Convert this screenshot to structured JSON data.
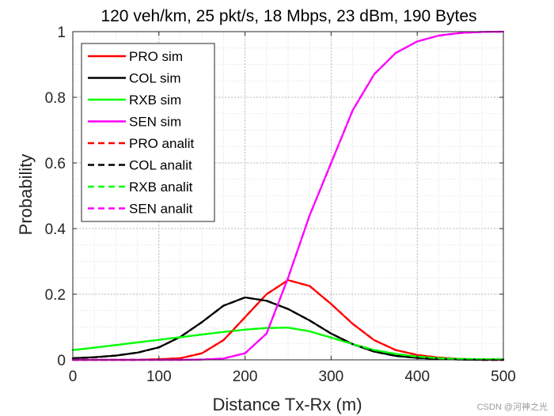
{
  "chart_data": {
    "type": "line",
    "title": "120 veh/km, 25 pkt/s, 18 Mbps, 23 dBm, 190 Bytes",
    "xlabel": "Distance Tx-Rx (m)",
    "ylabel": "Probability",
    "xlim": [
      0,
      500
    ],
    "ylim": [
      0,
      1
    ],
    "xticks": [
      0,
      100,
      200,
      300,
      400,
      500
    ],
    "yticks": [
      0,
      0.2,
      0.4,
      0.6,
      0.8,
      1
    ],
    "x_tick_labels": [
      "0",
      "100",
      "200",
      "300",
      "400",
      "500"
    ],
    "y_tick_labels": [
      "0",
      "0.2",
      "0.4",
      "0.6",
      "0.8",
      "1"
    ],
    "grid": "major and minor, dotted",
    "legend_location": "top-left",
    "x": [
      0,
      25,
      50,
      75,
      100,
      125,
      150,
      175,
      200,
      225,
      250,
      275,
      300,
      325,
      350,
      375,
      400,
      425,
      450,
      475,
      500
    ],
    "series": [
      {
        "name": "PRO sim",
        "color": "#ff0000",
        "style": "solid",
        "values": [
          0.0,
          0.0,
          0.0,
          0.0,
          0.002,
          0.005,
          0.02,
          0.06,
          0.13,
          0.2,
          0.243,
          0.225,
          0.17,
          0.11,
          0.06,
          0.03,
          0.015,
          0.007,
          0.003,
          0.001,
          0.0
        ]
      },
      {
        "name": "COL sim",
        "color": "#000000",
        "style": "solid",
        "values": [
          0.005,
          0.008,
          0.013,
          0.022,
          0.038,
          0.07,
          0.115,
          0.165,
          0.19,
          0.18,
          0.155,
          0.12,
          0.08,
          0.048,
          0.025,
          0.012,
          0.006,
          0.003,
          0.001,
          0.0,
          0.0
        ]
      },
      {
        "name": "RXB sim",
        "color": "#00ff00",
        "style": "solid",
        "values": [
          0.03,
          0.037,
          0.045,
          0.053,
          0.061,
          0.069,
          0.077,
          0.085,
          0.092,
          0.097,
          0.098,
          0.087,
          0.068,
          0.048,
          0.03,
          0.018,
          0.01,
          0.005,
          0.003,
          0.002,
          0.002
        ]
      },
      {
        "name": "SEN sim",
        "color": "#ff00ff",
        "style": "solid",
        "values": [
          0.0,
          0.0,
          0.0,
          0.0,
          0.0,
          0.0,
          0.001,
          0.004,
          0.02,
          0.08,
          0.25,
          0.44,
          0.6,
          0.76,
          0.87,
          0.935,
          0.97,
          0.988,
          0.996,
          0.999,
          1.0
        ]
      },
      {
        "name": "PRO analit",
        "color": "#ff0000",
        "style": "dashed",
        "values": [
          0.0,
          0.0,
          0.0,
          0.0,
          0.002,
          0.005,
          0.02,
          0.06,
          0.13,
          0.2,
          0.243,
          0.225,
          0.17,
          0.11,
          0.06,
          0.03,
          0.015,
          0.007,
          0.003,
          0.001,
          0.0
        ]
      },
      {
        "name": "COL analit",
        "color": "#000000",
        "style": "dashed",
        "values": [
          0.005,
          0.008,
          0.013,
          0.022,
          0.038,
          0.07,
          0.115,
          0.165,
          0.19,
          0.18,
          0.155,
          0.12,
          0.08,
          0.048,
          0.025,
          0.012,
          0.006,
          0.003,
          0.001,
          0.0,
          0.0
        ]
      },
      {
        "name": "RXB analit",
        "color": "#00ff00",
        "style": "dashed",
        "values": [
          0.03,
          0.037,
          0.045,
          0.053,
          0.061,
          0.069,
          0.077,
          0.085,
          0.092,
          0.097,
          0.098,
          0.087,
          0.068,
          0.048,
          0.03,
          0.018,
          0.01,
          0.005,
          0.003,
          0.002,
          0.002
        ]
      },
      {
        "name": "SEN analit",
        "color": "#ff00ff",
        "style": "dashed",
        "values": [
          0.0,
          0.0,
          0.0,
          0.0,
          0.0,
          0.0,
          0.001,
          0.004,
          0.02,
          0.08,
          0.25,
          0.44,
          0.6,
          0.76,
          0.87,
          0.935,
          0.97,
          0.988,
          0.996,
          0.999,
          1.0
        ]
      }
    ]
  },
  "watermark": "CSDN @河神之光"
}
